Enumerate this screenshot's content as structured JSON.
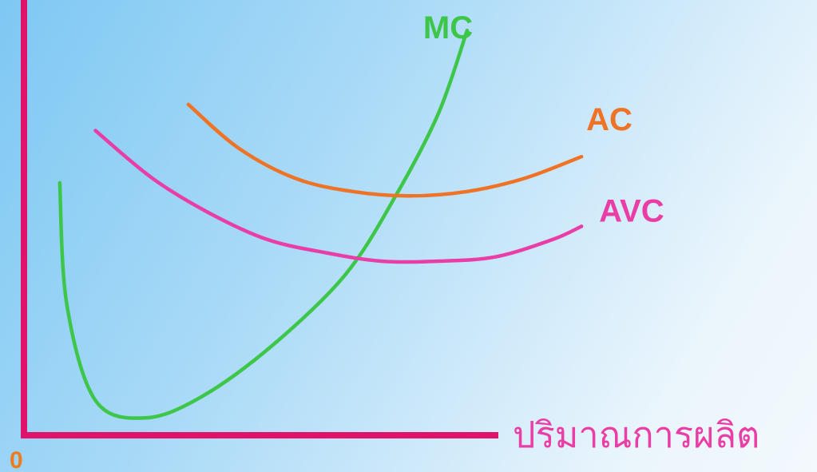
{
  "colors": {
    "axis": "#e0126a",
    "mc": "#3ec64a",
    "ac": "#ee7326",
    "avc": "#e83ea6",
    "origin": "#f07a1c",
    "xaxis_label": "#e83ea6"
  },
  "chart_data": {
    "type": "line",
    "title": "",
    "xlabel": "ปริมาณการผลิต",
    "ylabel": "",
    "origin_label": "0",
    "grid": false,
    "series": [
      {
        "name": "MC",
        "color": "#3ec64a",
        "x": [
          0.05,
          0.06,
          0.1,
          0.17,
          0.25,
          0.35,
          0.45,
          0.52,
          0.58,
          0.62
        ],
        "y": [
          0.58,
          0.3,
          0.08,
          0.04,
          0.09,
          0.21,
          0.37,
          0.55,
          0.74,
          0.93
        ]
      },
      {
        "name": "AC",
        "color": "#ee7326",
        "x": [
          0.23,
          0.3,
          0.38,
          0.46,
          0.54,
          0.62,
          0.7,
          0.78
        ],
        "y": [
          0.76,
          0.66,
          0.59,
          0.56,
          0.55,
          0.56,
          0.59,
          0.64
        ]
      },
      {
        "name": "AVC",
        "color": "#e83ea6",
        "x": [
          0.1,
          0.18,
          0.26,
          0.34,
          0.42,
          0.5,
          0.58,
          0.66,
          0.74,
          0.78
        ],
        "y": [
          0.7,
          0.59,
          0.51,
          0.45,
          0.42,
          0.4,
          0.4,
          0.41,
          0.45,
          0.48
        ]
      }
    ]
  }
}
